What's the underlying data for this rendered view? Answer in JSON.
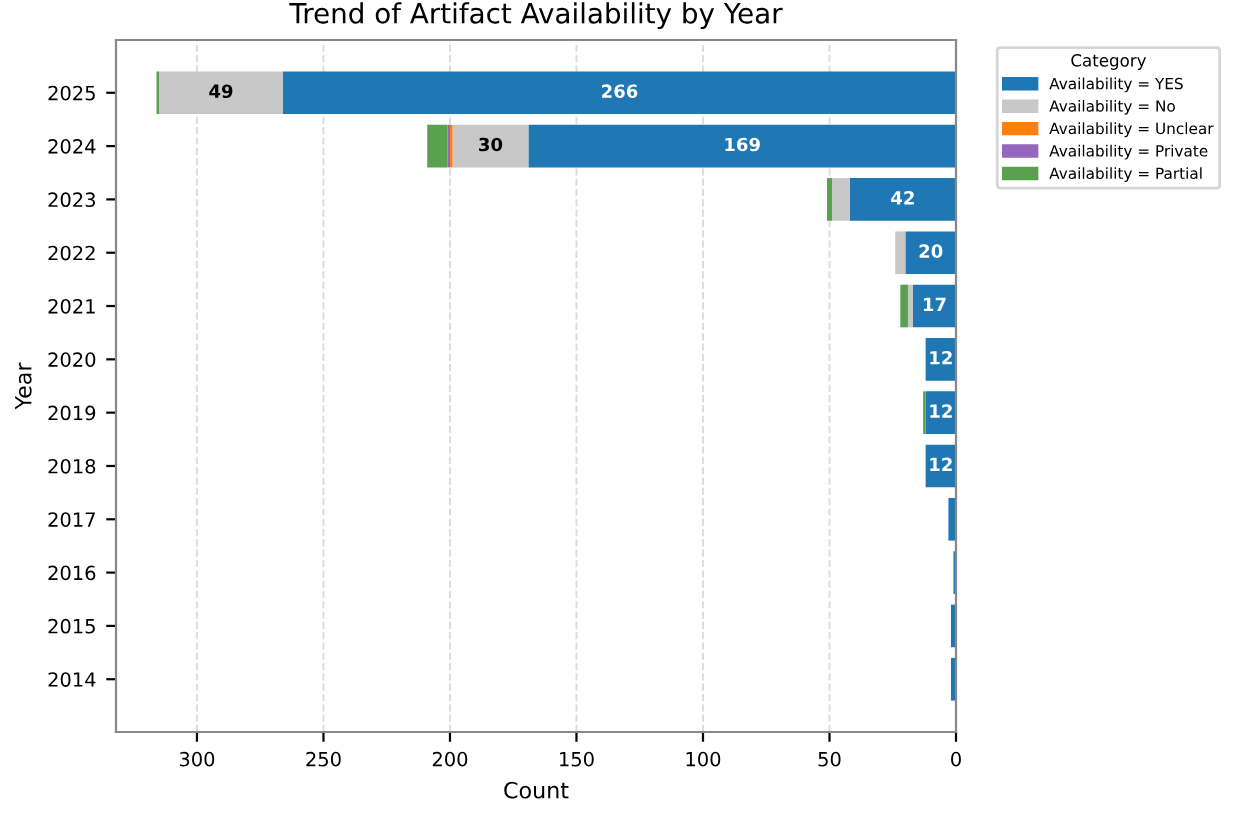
{
  "chart_data": {
    "type": "bar",
    "orientation": "horizontal",
    "stacked": true,
    "title": "Trend of Artifact Availability by Year",
    "xlabel": "Count",
    "ylabel": "Year",
    "legend_title": "Category",
    "legend": "top right",
    "grid": "x",
    "categories": [
      "2025",
      "2024",
      "2023",
      "2022",
      "2021",
      "2020",
      "2019",
      "2018",
      "2017",
      "2016",
      "2015",
      "2014"
    ],
    "xlim": [
      332,
      0
    ],
    "xticks": [
      300,
      250,
      200,
      150,
      100,
      50,
      0
    ],
    "series": [
      {
        "name": "Availability = YES",
        "color": "#1f77b4",
        "values": [
          266,
          169,
          42,
          20,
          17,
          12,
          12,
          12,
          3,
          1,
          2,
          2
        ],
        "value_labels": [
          "266",
          "169",
          "42",
          "20",
          "17",
          "12",
          "12",
          "12",
          null,
          null,
          null,
          null
        ]
      },
      {
        "name": "Availability = No",
        "color": "#c8c8c8",
        "values": [
          49,
          30,
          7,
          4,
          2,
          0,
          0,
          0,
          0,
          0,
          0,
          0
        ],
        "value_labels": [
          "49",
          "30",
          null,
          null,
          null,
          null,
          null,
          null,
          null,
          null,
          null,
          null
        ]
      },
      {
        "name": "Availability = Unclear",
        "color": "#ff7f0e",
        "values": [
          0,
          1,
          0,
          0,
          0,
          0,
          0,
          0,
          0,
          0,
          0,
          0
        ]
      },
      {
        "name": "Availability = Private",
        "color": "#9467bd",
        "values": [
          0,
          1,
          0,
          0,
          0,
          0,
          0,
          0,
          0,
          0,
          0,
          0
        ]
      },
      {
        "name": "Availability = Partial",
        "color": "#59a14f",
        "values": [
          1,
          8,
          2,
          0,
          3,
          0,
          1,
          0,
          0,
          0,
          0,
          0
        ]
      }
    ]
  }
}
